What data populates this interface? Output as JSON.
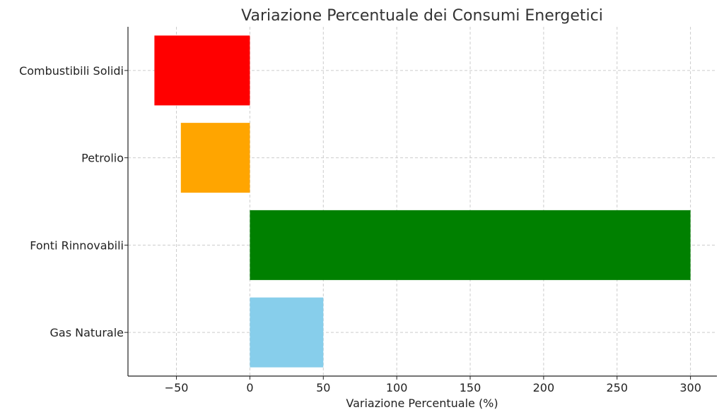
{
  "chart_data": {
    "type": "bar",
    "orientation": "horizontal",
    "title": "Variazione Percentuale dei Consumi Energetici",
    "xlabel": "Variazione Percentuale (%)",
    "ylabel": "",
    "categories": [
      "Gas Naturale",
      "Fonti Rinnovabili",
      "Petrolio",
      "Combustibili Solidi"
    ],
    "values": [
      50,
      300,
      -47,
      -65
    ],
    "colors": [
      "#87ceeb",
      "#008000",
      "#ffa500",
      "#ff0000"
    ],
    "xlim": [
      -83,
      318
    ],
    "xticks": [
      -50,
      0,
      50,
      100,
      150,
      200,
      250,
      300
    ],
    "xtick_labels": [
      "−50",
      "0",
      "50",
      "100",
      "150",
      "200",
      "250",
      "300"
    ],
    "grid": true
  }
}
